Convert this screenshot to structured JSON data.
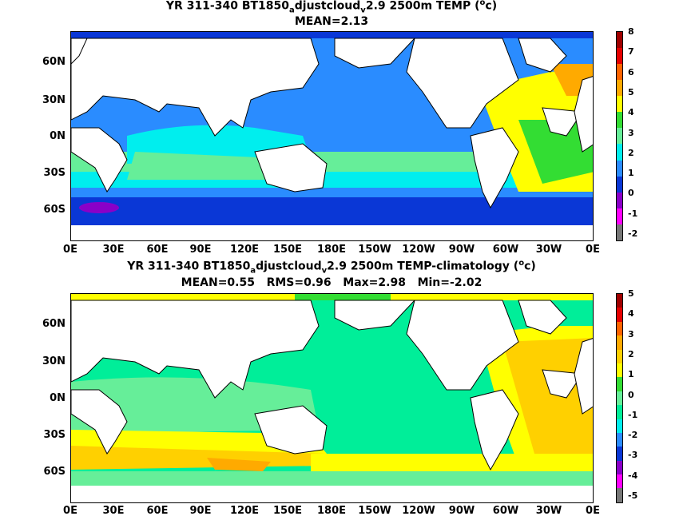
{
  "map1": {
    "title_prefix": "YR 311-340 BT1850",
    "title_sub1": "a",
    "title_mid": "djustcloud",
    "title_sub2": "v",
    "title_suffix": "2.9 2500m TEMP (",
    "title_sup": "o",
    "title_end": "c)",
    "subtitle": "MEAN=2.13",
    "colorbar_labels": [
      "8",
      "7",
      "6",
      "5",
      "4",
      "3",
      "2",
      "1",
      "0",
      "-1",
      "-2"
    ],
    "colorbar_colors": [
      "#a00000",
      "#e60000",
      "#ff6400",
      "#ffaa00",
      "#ffff00",
      "#33dd33",
      "#66ee99",
      "#00eeee",
      "#2a8cff",
      "#0a37d6",
      "#8a00c8",
      "#ff00ff",
      "#777777"
    ]
  },
  "map2": {
    "title_prefix": "YR 311-340 BT1850",
    "title_sub1": "a",
    "title_mid": "djustcloud",
    "title_sub2": "v",
    "title_suffix": "2.9 2500m TEMP-climatology (",
    "title_sup": "o",
    "title_end": "c)",
    "subtitle": "MEAN=0.55   RMS=0.96   Max=2.98   Min=-2.02",
    "colorbar_labels": [
      "5",
      "4",
      "3",
      "2",
      "1",
      "0",
      "-1",
      "-2",
      "-3",
      "-4",
      "-5"
    ],
    "colorbar_colors": [
      "#a00000",
      "#e60000",
      "#ff6400",
      "#ffaa00",
      "#ffd000",
      "#ffff00",
      "#33dd33",
      "#66ee99",
      "#00ee99",
      "#00eeee",
      "#2a8cff",
      "#0a37d6",
      "#8a00c8",
      "#ff00ff",
      "#777777"
    ]
  },
  "axes": {
    "lat_labels": [
      "60N",
      "30N",
      "0N",
      "30S",
      "60S"
    ],
    "lon_labels": [
      "0E",
      "30E",
      "60E",
      "90E",
      "120E",
      "150E",
      "180E",
      "150W",
      "120W",
      "90W",
      "60W",
      "30W",
      "0E"
    ]
  }
}
